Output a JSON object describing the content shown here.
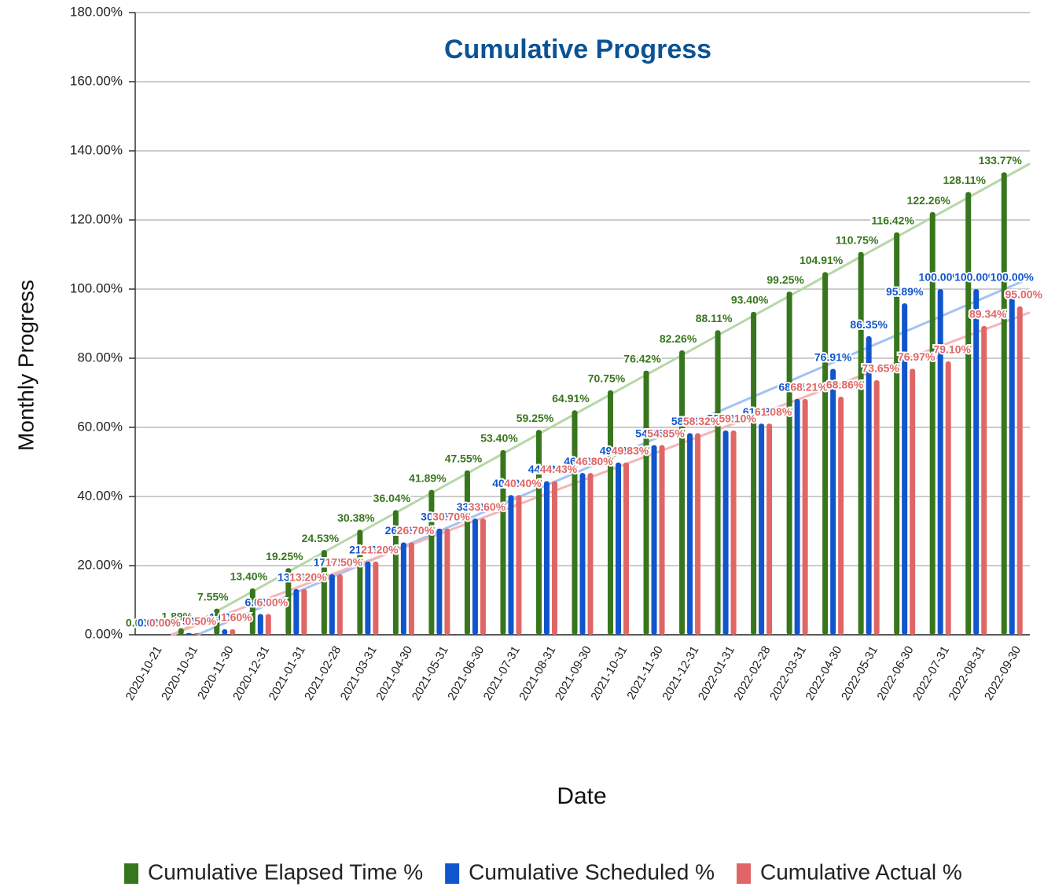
{
  "chart_data": {
    "type": "bar",
    "title": "Cumulative  Progress",
    "x_label": "Date",
    "y_label": "Monthly Progress",
    "categories": [
      "2020-10-21",
      "2020-10-31",
      "2020-11-30",
      "2020-12-31",
      "2021-01-31",
      "2021-02-28",
      "2021-03-31",
      "2021-04-30",
      "2021-05-31",
      "2021-06-30",
      "2021-07-31",
      "2021-08-31",
      "2021-09-30",
      "2021-10-31",
      "2021-11-30",
      "2021-12-31",
      "2022-01-31",
      "2022-02-28",
      "2022-03-31",
      "2022-04-30",
      "2022-05-31",
      "2022-06-30",
      "2022-07-31",
      "2022-08-31",
      "2022-09-30"
    ],
    "series": [
      {
        "name": "Cumulative Elapsed Time %",
        "color": "#38761d",
        "trend_color": "#b6d7a8",
        "values": [
          0,
          1.89,
          7.55,
          13.4,
          19.25,
          24.53,
          30.38,
          36.04,
          41.89,
          47.55,
          53.4,
          59.25,
          64.91,
          70.75,
          76.42,
          82.26,
          88.11,
          93.4,
          99.25,
          104.91,
          110.75,
          116.42,
          122.26,
          128.11,
          133.77
        ],
        "value_labels": [
          "0.00%",
          "1.89%",
          "7.55%",
          "13.40%",
          "19.25%",
          "24.53%",
          "30.38%",
          "36.04%",
          "41.89%",
          "47.55%",
          "53.40%",
          "59.25%",
          "64.91%",
          "70.75%",
          "76.42%",
          "82.26%",
          "88.11%",
          "93.40%",
          "99.25%",
          "104.91%",
          "110.75%",
          "116.42%",
          "122.26%",
          "128.11%",
          "133.77%"
        ]
      },
      {
        "name": "Cumulative Scheduled %",
        "color": "#1155cc",
        "trend_color": "#a4c2f4",
        "values": [
          0,
          0.5,
          1.6,
          6,
          13.2,
          17.5,
          21.2,
          26.7,
          30.7,
          33.6,
          40.4,
          44.43,
          46.8,
          49.83,
          54.85,
          58.32,
          59.1,
          61.08,
          68.21,
          76.91,
          86.35,
          95.89,
          100,
          100,
          100
        ],
        "value_labels": [
          "0.00%",
          "0.50%",
          "1.60%",
          "6.00%",
          "13.20%",
          "17.50%",
          "21.20%",
          "26.70%",
          "30.70%",
          "33.60%",
          "40.40%",
          "44.43%",
          "46.80%",
          "49.83%",
          "54.85%",
          "58.32%",
          "59.10%",
          "61.08%",
          "68.21%",
          "76.91%",
          "86.35%",
          "95.89%",
          "100.00%",
          "100.00%",
          "100.00%"
        ]
      },
      {
        "name": "Cumulative Actual %",
        "color": "#e06666",
        "trend_color": "#f4b6b6",
        "values": [
          0,
          0.5,
          1.6,
          6,
          13.2,
          17.5,
          21.2,
          26.7,
          30.7,
          33.6,
          40.4,
          44.43,
          46.8,
          49.83,
          54.85,
          58.32,
          59.1,
          61.08,
          68.21,
          68.86,
          73.65,
          76.97,
          79.1,
          89.34,
          95
        ],
        "value_labels": [
          "0.00%",
          "0.50%",
          "1.60%",
          "6.00%",
          "13.20%",
          "17.50%",
          "21.20%",
          "26.70%",
          "30.70%",
          "33.60%",
          "40.40%",
          "44.43%",
          "46.80%",
          "49.83%",
          "54.85%",
          "58.32%",
          "59.10%",
          "61.08%",
          "68.21%",
          "68.86%",
          "73.65%",
          "76.97%",
          "79.10%",
          "89.34%",
          "95.00%"
        ]
      }
    ],
    "ylim": [
      0,
      180
    ],
    "yticks": [
      {
        "value": 0,
        "label": "0.00%"
      },
      {
        "value": 20,
        "label": "20.00%"
      },
      {
        "value": 40,
        "label": "40.00%"
      },
      {
        "value": 60,
        "label": "60.00%"
      },
      {
        "value": 80,
        "label": "80.00%"
      },
      {
        "value": 100,
        "label": "100.00%"
      },
      {
        "value": 120,
        "label": "120.00%"
      },
      {
        "value": 140,
        "label": "140.00%"
      },
      {
        "value": 160,
        "label": "160.00%"
      },
      {
        "value": 180,
        "label": "180.00%"
      }
    ],
    "grid": true,
    "trendline": true,
    "legend": "bottom"
  }
}
